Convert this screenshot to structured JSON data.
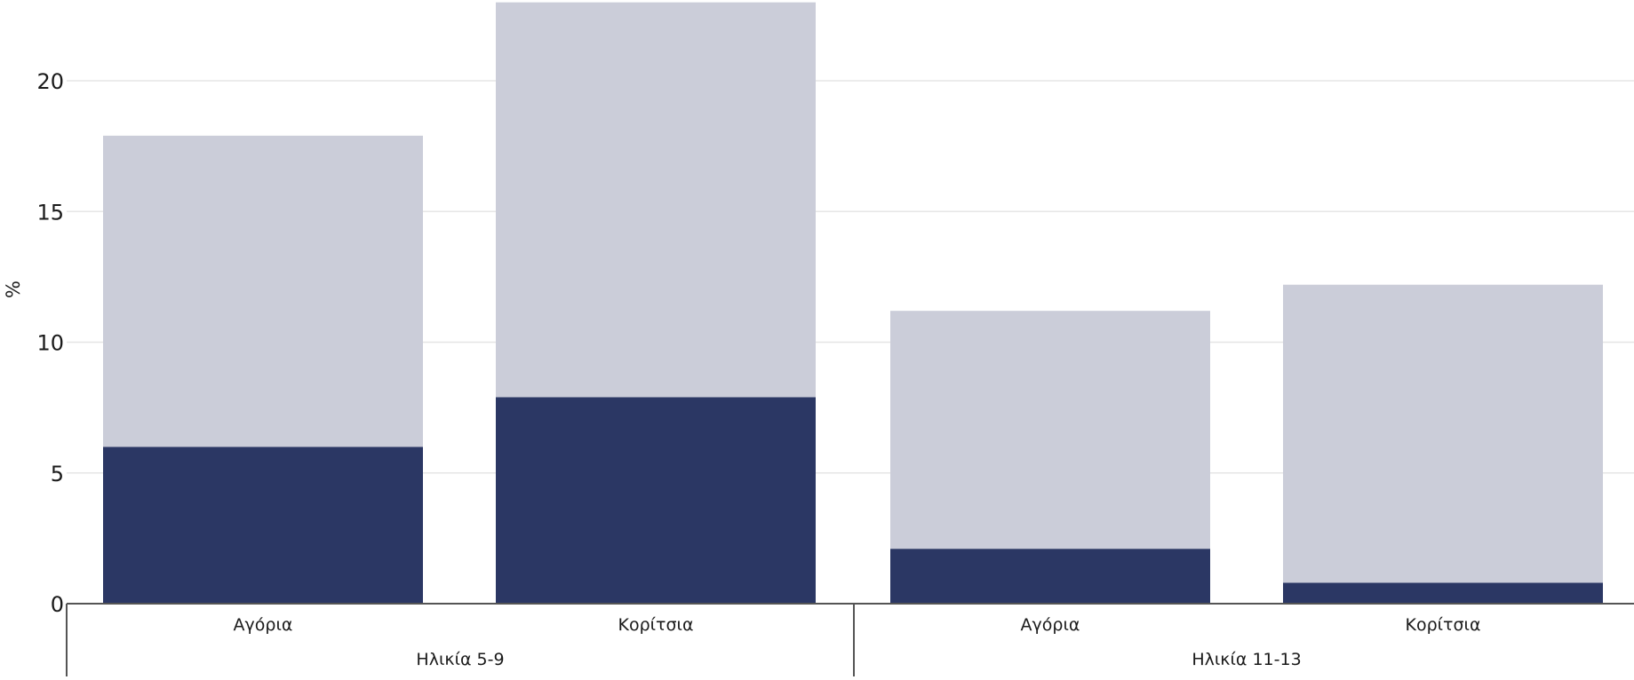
{
  "chart_data": {
    "type": "bar",
    "stacked": true,
    "ylabel": "%",
    "ylim": [
      0,
      23
    ],
    "yticks": [
      0,
      5,
      10,
      15,
      20
    ],
    "grid": true,
    "groups": [
      {
        "label": "Ηλικία 5-9",
        "categories": [
          "Αγόρια",
          "Κορίτσια"
        ]
      },
      {
        "label": "Ηλικία 11-13",
        "categories": [
          "Αγόρια",
          "Κορίτσια"
        ]
      }
    ],
    "categories": [
      "Αγόρια",
      "Κορίτσια",
      "Αγόρια",
      "Κορίτσια"
    ],
    "series": [
      {
        "values": [
          6.0,
          7.9,
          2.1,
          0.8
        ],
        "color": "#2b3764"
      },
      {
        "values": [
          11.9,
          15.1,
          9.1,
          11.4
        ],
        "color": "#cbcdd9"
      }
    ],
    "totals": [
      17.9,
      23.0,
      11.2,
      12.2
    ]
  }
}
